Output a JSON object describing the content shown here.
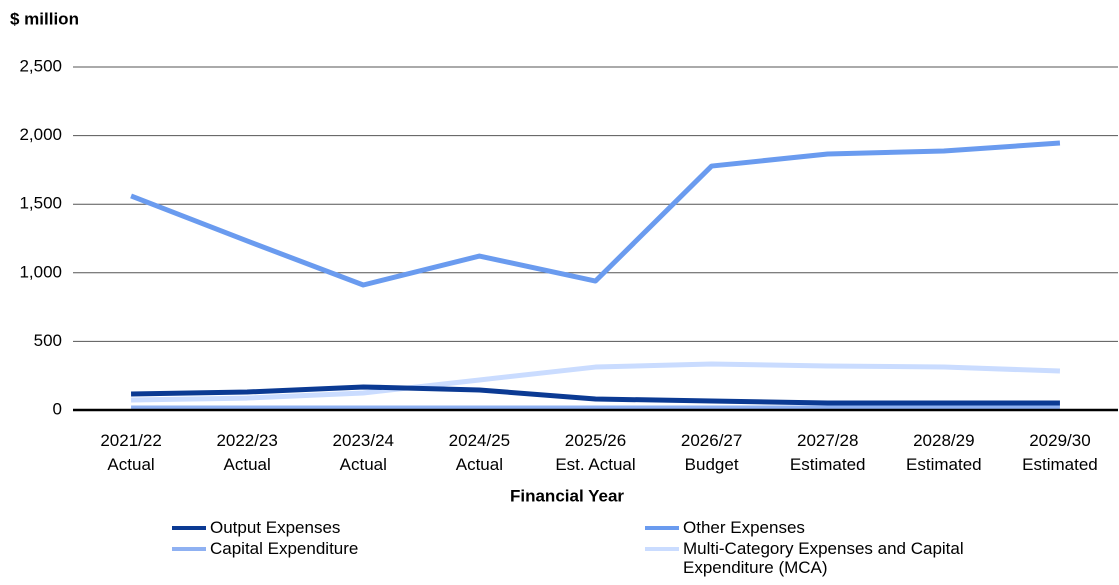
{
  "chart_data": {
    "type": "line",
    "y_axis_label": "$ million",
    "x_axis_label": "Financial Year",
    "categories": [
      "2021/22 Actual",
      "2022/23 Actual",
      "2023/24 Actual",
      "2024/25 Actual",
      "2025/26 Est. Actual",
      "2026/27 Budget",
      "2027/28 Estimated",
      "2028/29 Estimated",
      "2029/30 Estimated"
    ],
    "series": [
      {
        "name": "Output Expenses",
        "color": "#0b3a93",
        "values": [
          117,
          131,
          168,
          146,
          80,
          66,
          51,
          51,
          51
        ]
      },
      {
        "name": "Other Expenses",
        "color": "#6a9bef",
        "values": [
          1560,
          1232,
          911,
          1122,
          940,
          1778,
          1866,
          1888,
          1946
        ]
      },
      {
        "name": "Capital Expenditure",
        "color": "#8fb1f2",
        "values": [
          15,
          15,
          15,
          15,
          15,
          15,
          15,
          15,
          15
        ]
      },
      {
        "name": "Multi-Category Expenses and Capital Expenditure (MCA)",
        "color": "#cadcff",
        "values": [
          73,
          87,
          124,
          219,
          313,
          335,
          321,
          313,
          284
        ]
      }
    ],
    "ylim": [
      0,
      2500
    ],
    "yticks": [
      0,
      500,
      {
        "value": 1000,
        "label": "1,000"
      },
      {
        "value": 1500,
        "label": "1,500"
      },
      {
        "value": 2000,
        "label": "2,000"
      },
      {
        "value": 2500,
        "label": "2,500"
      }
    ],
    "grid": true
  }
}
